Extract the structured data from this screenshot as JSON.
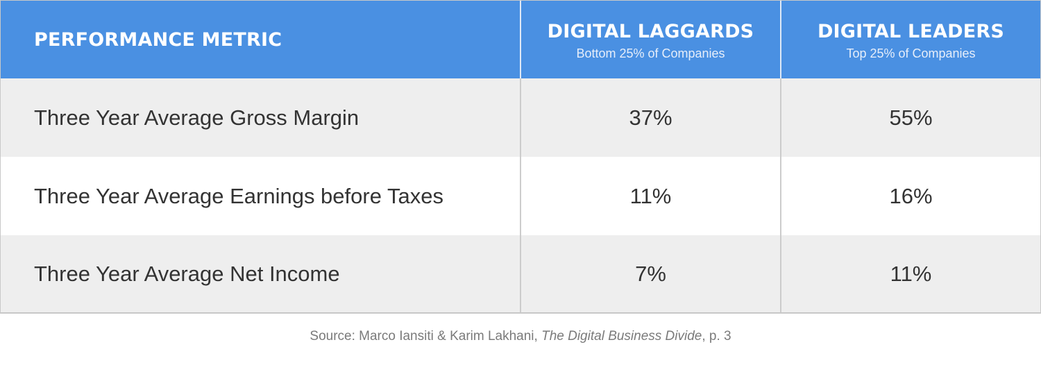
{
  "chart_data": {
    "type": "table",
    "columns": [
      {
        "title": "PERFORMANCE METRIC",
        "subtitle": ""
      },
      {
        "title": "DIGITAL LAGGARDS",
        "subtitle": "Bottom 25% of Companies"
      },
      {
        "title": "DIGITAL LEADERS",
        "subtitle": "Top 25% of Companies"
      }
    ],
    "rows": [
      {
        "metric": "Three Year Average Gross Margin",
        "laggards": "37%",
        "leaders": "55%"
      },
      {
        "metric": "Three Year Average Earnings before Taxes",
        "laggards": "11%",
        "leaders": "16%"
      },
      {
        "metric": "Three Year Average Net Income",
        "laggards": "7%",
        "leaders": "11%"
      }
    ],
    "source": {
      "prefix": "Source: Marco Iansiti & Karim Lakhani, ",
      "work": "The Digital Business Divide",
      "suffix": ", p. 3"
    }
  },
  "colors": {
    "header_bg": "#4a90e2",
    "row_alt_bg": "#eeeeee",
    "row_bg": "#ffffff",
    "text": "#333333",
    "source_text": "#7a7a7a"
  }
}
